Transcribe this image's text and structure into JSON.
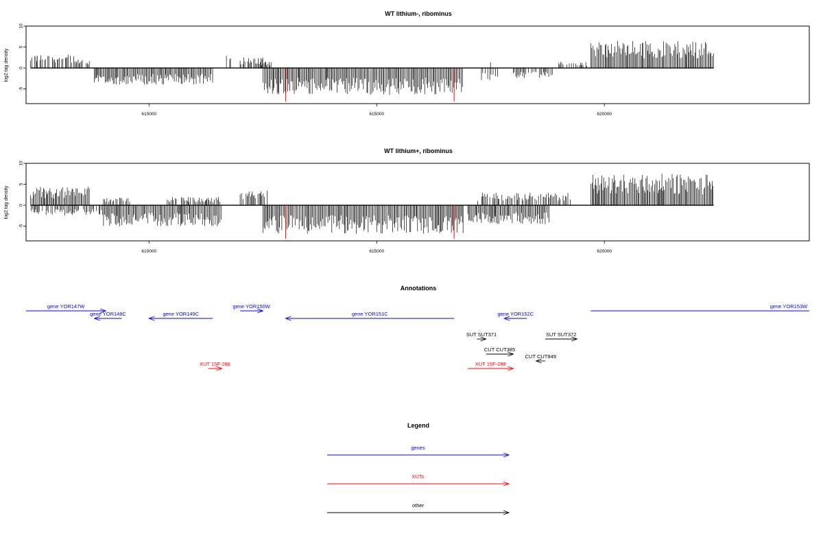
{
  "chart_data": [
    {
      "type": "bar",
      "title": "WT lithium-, ribominus",
      "ylabel": "log2 tag density",
      "xlabel": "",
      "xlim": [
        607300,
        624500
      ],
      "ylim": [
        -8.5,
        10
      ],
      "yticks": [
        -5,
        0,
        5,
        10
      ],
      "xticks": [
        610000,
        615000,
        620000
      ],
      "grid": false,
      "baseline_x": [
        607400,
        622400
      ],
      "marker_lines": [
        613000,
        616700
      ],
      "signal_segments": [
        {
          "start": 607400,
          "end": 608400,
          "amp": 3.2,
          "sign": 1
        },
        {
          "start": 608400,
          "end": 608700,
          "amp": 2.0,
          "sign": 1
        },
        {
          "start": 608800,
          "end": 611400,
          "amp": 4.0,
          "sign": -1
        },
        {
          "start": 611700,
          "end": 611800,
          "amp": 3.5,
          "sign": 1
        },
        {
          "start": 612000,
          "end": 612600,
          "amp": 2.5,
          "sign": 1
        },
        {
          "start": 612400,
          "end": 612700,
          "amp": 1.5,
          "sign": 1
        },
        {
          "start": 612500,
          "end": 616900,
          "amp": 6.5,
          "sign": -1
        },
        {
          "start": 617300,
          "end": 617700,
          "amp": 3.0,
          "sign": -1
        },
        {
          "start": 617500,
          "end": 617600,
          "amp": 2.5,
          "sign": 1
        },
        {
          "start": 618000,
          "end": 618900,
          "amp": 2.5,
          "sign": -1
        },
        {
          "start": 619000,
          "end": 619700,
          "amp": 1.5,
          "sign": 1
        },
        {
          "start": 619700,
          "end": 622400,
          "amp": 6.5,
          "sign": 1
        }
      ]
    },
    {
      "type": "bar",
      "title": "WT lithium+, ribominus",
      "ylabel": "log2 tag density",
      "xlabel": "",
      "xlim": [
        607300,
        624500
      ],
      "ylim": [
        -8.5,
        10
      ],
      "yticks": [
        -5,
        0,
        5,
        10
      ],
      "xticks": [
        610000,
        615000,
        620000
      ],
      "grid": false,
      "baseline_x": [
        607400,
        622400
      ],
      "marker_lines": [
        613000,
        616700
      ],
      "signal_segments": [
        {
          "start": 607400,
          "end": 608700,
          "amp": 4.5,
          "sign": 1
        },
        {
          "start": 607400,
          "end": 609000,
          "amp": 2.5,
          "sign": -1
        },
        {
          "start": 609000,
          "end": 609600,
          "amp": 2.0,
          "sign": 1
        },
        {
          "start": 609000,
          "end": 611600,
          "amp": 5.0,
          "sign": -1
        },
        {
          "start": 610400,
          "end": 611600,
          "amp": 2.0,
          "sign": 1
        },
        {
          "start": 612000,
          "end": 612600,
          "amp": 3.5,
          "sign": 1
        },
        {
          "start": 612500,
          "end": 616900,
          "amp": 6.8,
          "sign": -1
        },
        {
          "start": 617000,
          "end": 618800,
          "amp": 4.5,
          "sign": -1
        },
        {
          "start": 617200,
          "end": 619300,
          "amp": 3.0,
          "sign": 1
        },
        {
          "start": 619700,
          "end": 622400,
          "amp": 7.5,
          "sign": 1
        }
      ]
    }
  ],
  "annotations": {
    "title": "Annotations",
    "features": [
      {
        "label": "gene YOR147W",
        "color": "#0000ff",
        "row": 0,
        "start": 607300,
        "end": 609050,
        "dir": "right"
      },
      {
        "label": "gene YOR148C",
        "color": "#0000ff",
        "row": 1,
        "start": 608800,
        "end": 609400,
        "dir": "left"
      },
      {
        "label": "gene YOR149C",
        "color": "#0000ff",
        "row": 1,
        "start": 610000,
        "end": 611400,
        "dir": "left"
      },
      {
        "label": "gene YOR150W",
        "color": "#0000ff",
        "row": 0,
        "start": 612000,
        "end": 612500,
        "dir": "right"
      },
      {
        "label": "gene YOR151C",
        "color": "#0000ff",
        "row": 1,
        "start": 613000,
        "end": 616700,
        "dir": "left"
      },
      {
        "label": "gene YOR152C",
        "color": "#0000ff",
        "row": 1,
        "start": 617800,
        "end": 618300,
        "dir": "left"
      },
      {
        "label": "gene YOR153W",
        "color": "#0000ff",
        "row": 0,
        "start": 619700,
        "end": 624500,
        "dir": "none"
      },
      {
        "label": "SUT SUT371",
        "color": "#000000",
        "row": 2,
        "start": 617200,
        "end": 617400,
        "dir": "right"
      },
      {
        "label": "SUT SUT372",
        "color": "#000000",
        "row": 2,
        "start": 618700,
        "end": 619400,
        "dir": "right"
      },
      {
        "label": "CUT CUT385",
        "color": "#000000",
        "row": 3,
        "start": 617400,
        "end": 618000,
        "dir": "right"
      },
      {
        "label": "CUT CUT849",
        "color": "#000000",
        "row": 4,
        "start": 618500,
        "end": 618700,
        "dir": "left"
      },
      {
        "label": "XUT 15F-286",
        "color": "#ff0000",
        "row": 5,
        "start": 611300,
        "end": 611600,
        "dir": "right"
      },
      {
        "label": "XUT 15F-288",
        "color": "#ff0000",
        "row": 5,
        "start": 617000,
        "end": 618000,
        "dir": "right"
      }
    ]
  },
  "legend": {
    "title": "Legend",
    "items": [
      {
        "label": "genes",
        "color": "#0000ff"
      },
      {
        "label": "XUTs",
        "color": "#ff0000"
      },
      {
        "label": "other",
        "color": "#000000"
      }
    ]
  }
}
